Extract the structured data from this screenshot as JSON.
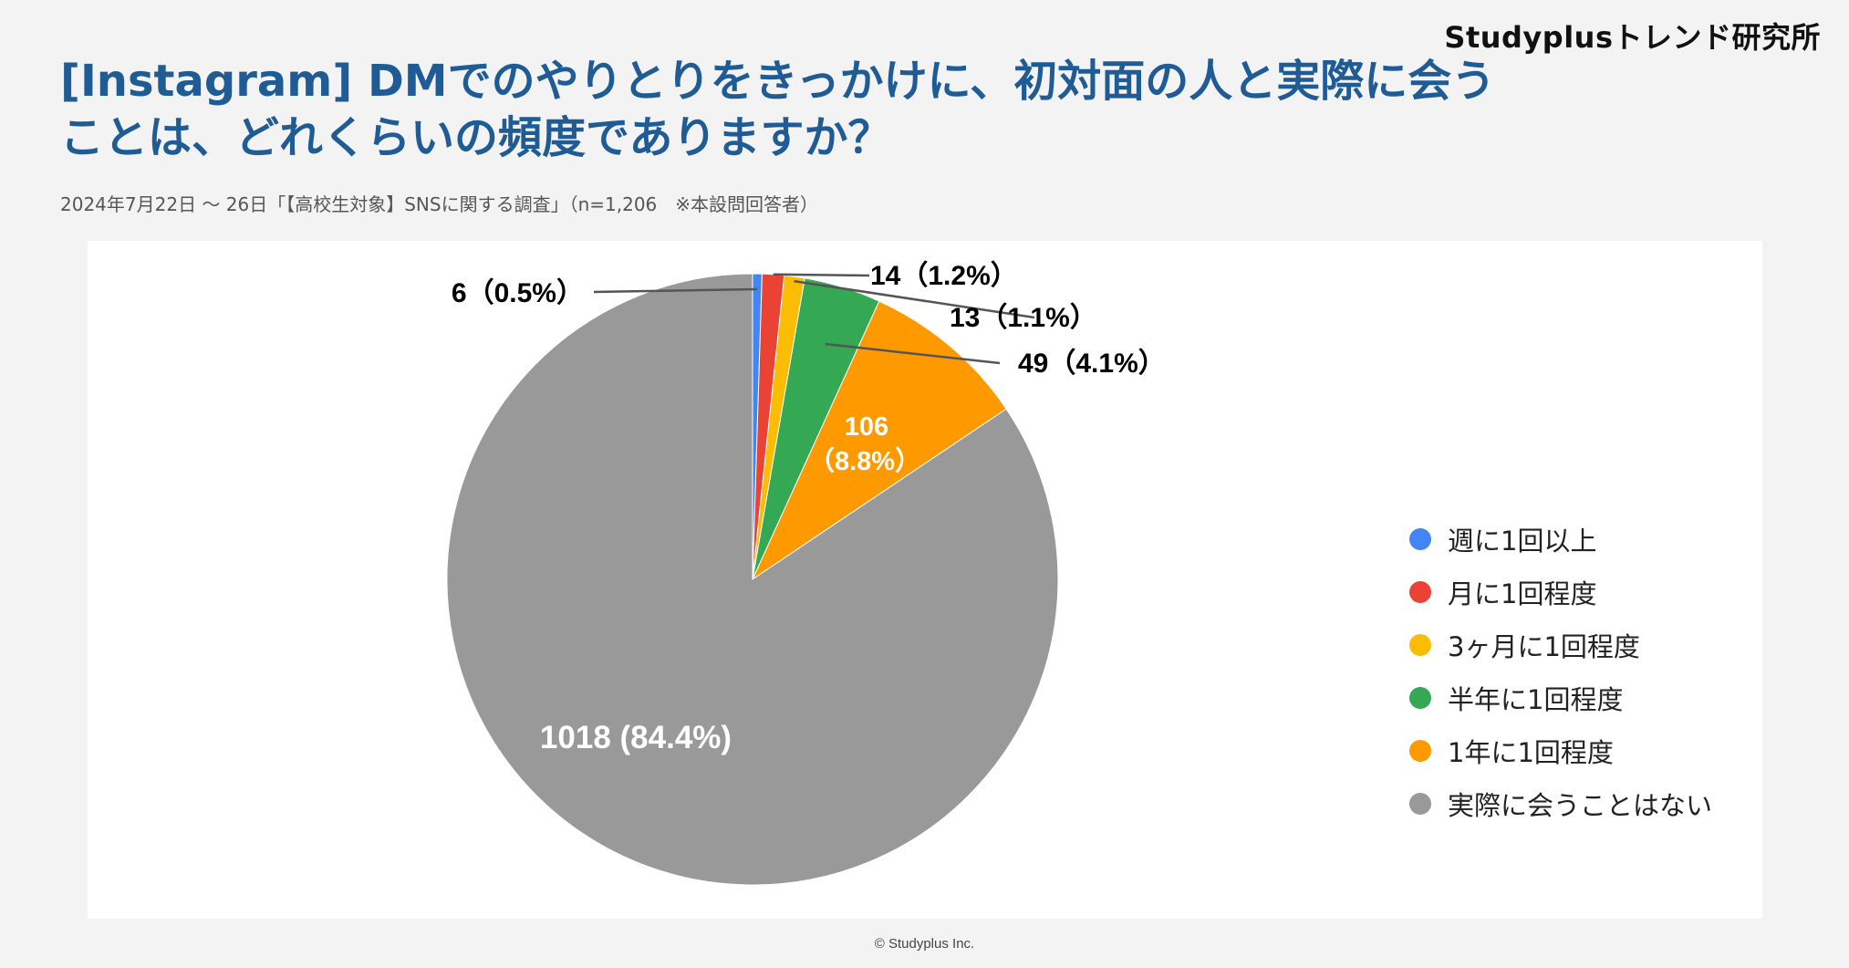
{
  "brand": "Studyplusトレンド研究所",
  "title_line1": "[Instagram] DMでのやりとりをきっかけに、初対面の人と実際に会う",
  "title_line2": "ことは、どれくらいの頻度でありますか？",
  "subtitle": "2024年7月22日 〜 26日「【高校生対象】SNSに関する調査」（n=1,206　※本設問回答者）",
  "footer": "© Studyplus Inc.",
  "chart_data": {
    "type": "pie",
    "title": "[Instagram] DMでのやりとりをきっかけに、初対面の人と実際に会うことは、どれくらいの頻度でありますか？",
    "n": 1206,
    "legend_position": "right",
    "slices": [
      {
        "label": "週に1回以上",
        "value": 6,
        "percent": 0.5,
        "color": "#4285f4",
        "data_label": "6（0.5%）"
      },
      {
        "label": "月に1回程度",
        "value": 14,
        "percent": 1.2,
        "color": "#ea4335",
        "data_label": "14（1.2%）"
      },
      {
        "label": "3ヶ月に1回程度",
        "value": 13,
        "percent": 1.1,
        "color": "#fbbc04",
        "data_label": "13（1.1%）"
      },
      {
        "label": "半年に1回程度",
        "value": 49,
        "percent": 4.1,
        "color": "#34a853",
        "data_label": "49（4.1%）"
      },
      {
        "label": "1年に1回程度",
        "value": 106,
        "percent": 8.8,
        "color": "#ff9900",
        "data_label_line1": "106",
        "data_label_line2": "（8.8%）"
      },
      {
        "label": "実際に会うことはない",
        "value": 1018,
        "percent": 84.4,
        "color": "#999999",
        "data_label": "1018 (84.4%)"
      }
    ]
  }
}
